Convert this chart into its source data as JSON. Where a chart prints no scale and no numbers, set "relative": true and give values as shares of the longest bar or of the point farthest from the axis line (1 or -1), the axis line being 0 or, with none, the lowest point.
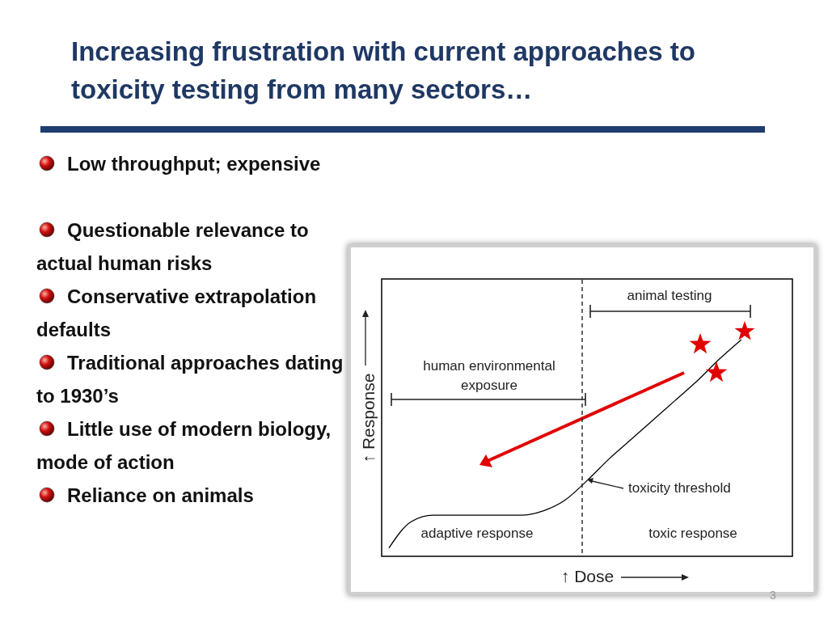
{
  "chart_data": {
    "type": "line",
    "title": "Increasing frustration with current approaches to toxicity testing from many sectors…",
    "xlabel": "↑ Dose",
    "ylabel": "↑ Response",
    "relative": true,
    "tick_labels": false,
    "grid": false,
    "marker": "none",
    "line_style": "solid",
    "categories": [
      null,
      null,
      null,
      null,
      null,
      null,
      null,
      null,
      null,
      null,
      null,
      null,
      null,
      null,
      null,
      null,
      null,
      null,
      null
    ],
    "series": [
      {
        "color": "#000000",
        "values": [
          0.04,
          0.16,
          0.19,
          0.19,
          0.19,
          0.19,
          0.19,
          0.21,
          0.26,
          0.35,
          0.45,
          0.54,
          0.63,
          0.72,
          0.81,
          0.91,
          1,
          null,
          null
        ]
      }
    ],
    "annotations": [
      "Low throughput; expensive",
      "Questionable relevance to actual human risks",
      "Conservative extrapolation defaults",
      "Traditional approaches dating to 1930’s",
      "Little use of modern biology, mode of action",
      "Reliance on animals",
      "animal testing",
      "human environmental exposure",
      "toxicity threshold",
      "adaptive response",
      "toxic response",
      "3"
    ]
  }
}
